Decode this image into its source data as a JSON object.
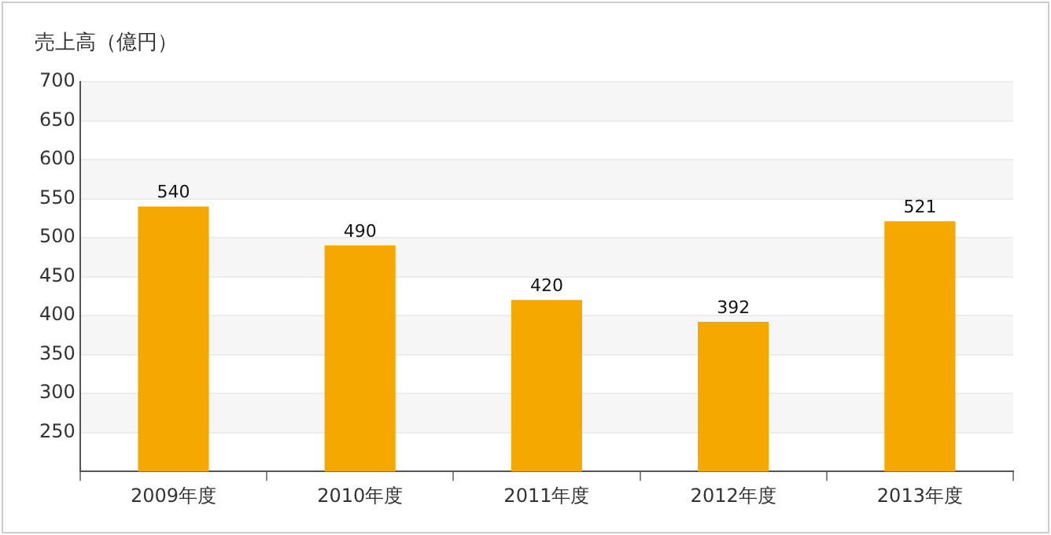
{
  "chart_data": {
    "type": "bar",
    "title": "売上高（億円）",
    "categories": [
      "2009年度",
      "2010年度",
      "2011年度",
      "2012年度",
      "2013年度"
    ],
    "values": [
      540,
      490,
      420,
      392,
      521
    ],
    "color": "#f5a800",
    "ylim": [
      200,
      700
    ],
    "yticks": [
      {
        "value": 200,
        "label": null
      },
      250,
      300,
      350,
      400,
      450,
      500,
      550,
      600,
      650,
      700
    ],
    "grid": "y",
    "data_labels": true
  }
}
